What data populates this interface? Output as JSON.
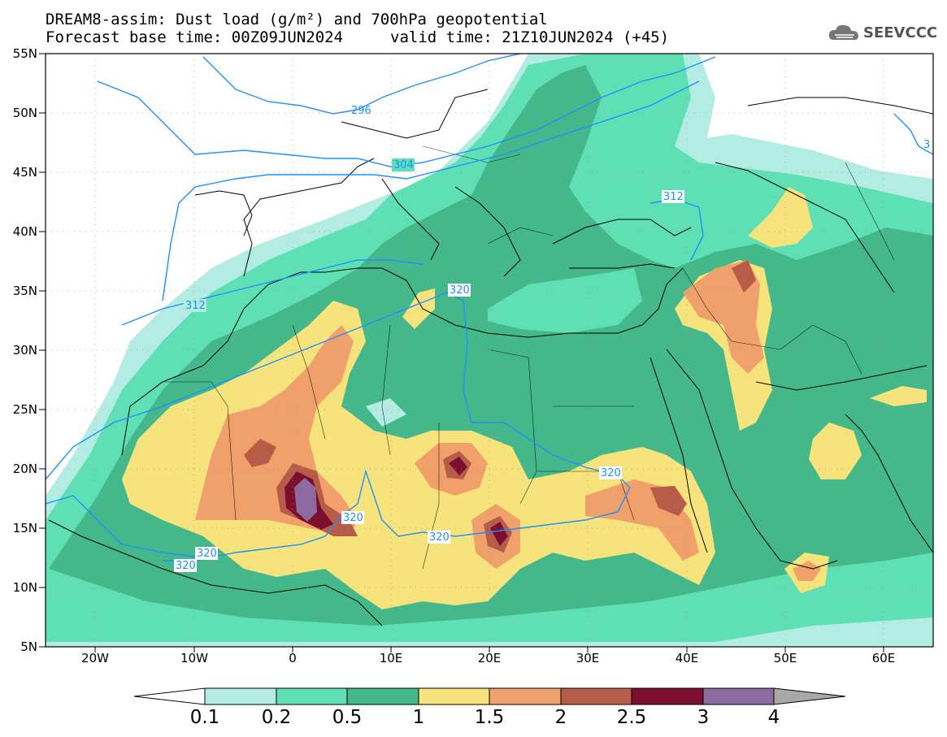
{
  "header": {
    "title_line1": "DREAM8-assim: Dust load (g/m²) and 700hPa geopotential",
    "title_line2_left": "Forecast base time: 00Z09JUN2024",
    "title_line2_right": "valid time: 21Z10JUN2024 (+45)"
  },
  "logo": {
    "text": "SEEVCCC",
    "icon": "cloud-icon"
  },
  "axes": {
    "lat_labels": [
      "55N",
      "50N",
      "45N",
      "40N",
      "35N",
      "30N",
      "25N",
      "20N",
      "15N",
      "10N",
      "5N"
    ],
    "lon_labels": [
      "20W",
      "10W",
      "0",
      "10E",
      "20E",
      "30E",
      "40E",
      "50E",
      "60E"
    ]
  },
  "contours": {
    "labels": [
      "296",
      "304",
      "312",
      "312",
      "320",
      "320",
      "320",
      "320",
      "320",
      "320",
      "3"
    ],
    "line_color": "#1e90ff"
  },
  "colorbar": {
    "ticks": [
      "0.1",
      "0.2",
      "0.5",
      "1",
      "1.5",
      "2",
      "2.5",
      "3",
      "4"
    ],
    "colors": [
      "#b2ece2",
      "#5ee0b4",
      "#44b88a",
      "#f7e37c",
      "#f0a06a",
      "#b85c4a",
      "#7c0f30",
      "#8d6aa0",
      "#a8a8a8"
    ]
  },
  "palette": {
    "land": "#ffffff",
    "coast": "#000000"
  }
}
